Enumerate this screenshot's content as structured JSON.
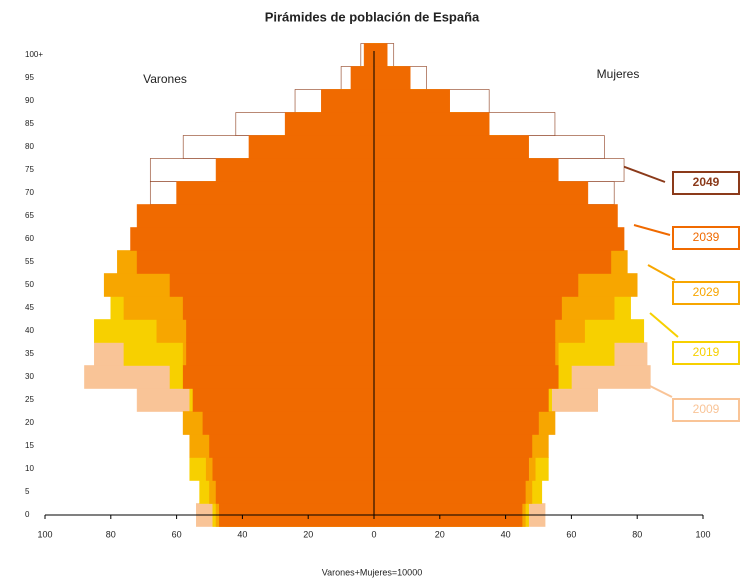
{
  "chart_data": {
    "type": "pyramid",
    "title": "Pirámides de población de España",
    "male_label": "Varones",
    "female_label": "Mujeres",
    "xlabel": "Varones+Mujeres=10000",
    "categories": [
      "0",
      "5",
      "10",
      "15",
      "20",
      "25",
      "30",
      "35",
      "40",
      "45",
      "50",
      "55",
      "60",
      "65",
      "70",
      "75",
      "80",
      "85",
      "90",
      "95",
      "100+"
    ],
    "xlim": [
      -100,
      100
    ],
    "xticks": [
      {
        "value": -100,
        "label": "100"
      },
      {
        "value": -80,
        "label": "80"
      },
      {
        "value": -60,
        "label": "60"
      },
      {
        "value": -40,
        "label": "40"
      },
      {
        "value": -20,
        "label": "20"
      },
      0,
      20,
      40,
      60,
      80,
      100
    ],
    "series": [
      {
        "name": "2049",
        "color": "#ffffff",
        "edgecolor": "#8b3a1a",
        "male": [
          45,
          46,
          47,
          49,
          50,
          51,
          52,
          55,
          58,
          57,
          52,
          51,
          55,
          62,
          68,
          68,
          58,
          42,
          24,
          10,
          4
        ],
        "female": [
          44,
          44,
          45,
          47,
          48,
          49,
          50,
          53,
          56,
          56,
          53,
          52,
          56,
          64,
          73,
          76,
          70,
          55,
          35,
          16,
          6
        ]
      },
      {
        "name": "2039",
        "color": "#f06a00",
        "edgecolor": "#f06a00",
        "male": [
          47,
          48,
          49,
          50,
          52,
          55,
          58,
          57,
          57,
          58,
          62,
          72,
          74,
          72,
          60,
          48,
          38,
          27,
          16,
          7,
          3
        ],
        "female": [
          45,
          46,
          47,
          48,
          50,
          53,
          56,
          55,
          55,
          57,
          62,
          72,
          76,
          74,
          65,
          56,
          47,
          35,
          23,
          11,
          4
        ]
      },
      {
        "name": "2029",
        "color": "#f7a600",
        "edgecolor": "#f7a600",
        "male": [
          48,
          50,
          51,
          56,
          58,
          55,
          55,
          58,
          66,
          76,
          82,
          78,
          70,
          60,
          52,
          42,
          34,
          24,
          13,
          5,
          2
        ],
        "female": [
          46,
          48,
          49,
          53,
          55,
          53,
          53,
          56,
          64,
          73,
          80,
          77,
          70,
          62,
          56,
          50,
          42,
          32,
          20,
          9,
          3
        ]
      },
      {
        "name": "2019",
        "color": "#f7d000",
        "edgecolor": "#f7d000",
        "male": [
          49,
          53,
          56,
          52,
          52,
          56,
          62,
          76,
          85,
          80,
          72,
          62,
          56,
          50,
          42,
          36,
          30,
          20,
          10,
          4,
          1
        ],
        "female": [
          47,
          51,
          53,
          50,
          50,
          54,
          60,
          73,
          82,
          78,
          72,
          64,
          58,
          53,
          47,
          43,
          38,
          28,
          16,
          6,
          2
        ]
      },
      {
        "name": "2009",
        "color": "#f9c497",
        "edgecolor": "#f9c497",
        "male": [
          54,
          50,
          49,
          52,
          58,
          72,
          88,
          85,
          78,
          70,
          62,
          55,
          50,
          42,
          38,
          35,
          28,
          16,
          7,
          2,
          0.5
        ],
        "female": [
          52,
          48,
          47,
          49,
          55,
          68,
          84,
          83,
          76,
          70,
          63,
          57,
          53,
          47,
          44,
          42,
          38,
          26,
          13,
          4,
          1
        ]
      }
    ]
  }
}
